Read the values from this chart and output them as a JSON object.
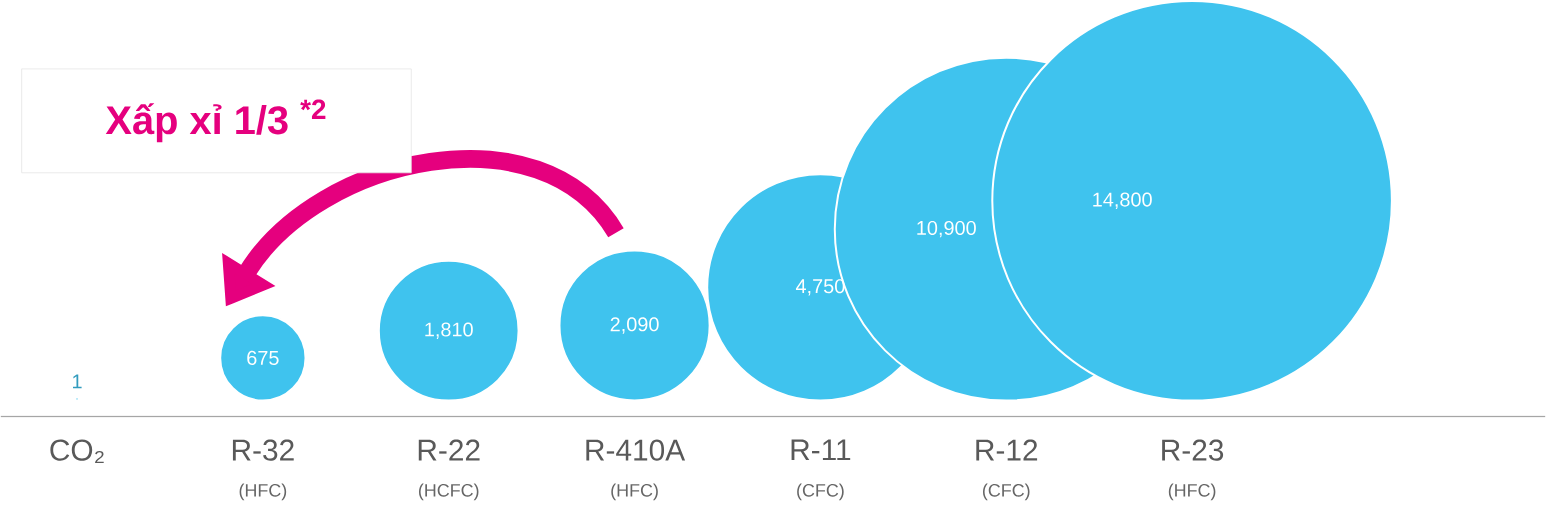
{
  "chart_data": {
    "type": "other",
    "categories": [
      "CO₂",
      "R-32",
      "R-22",
      "R-410A",
      "R-11",
      "R-12",
      "R-23"
    ],
    "values": [
      1,
      675,
      1810,
      2090,
      4750,
      10900,
      14800
    ],
    "value_labels": [
      "1",
      "675",
      "1,810",
      "2,090",
      "4,750",
      "10,900",
      "14,800"
    ],
    "color": "#3fc3ee",
    "annotations": [
      "Xấp xỉ 1/3 $^{*2}$",
      "(HFC)",
      "(HCFC)",
      "(HFC)",
      "(CFC)",
      "(CFC)",
      "(HFC)"
    ]
  }
}
